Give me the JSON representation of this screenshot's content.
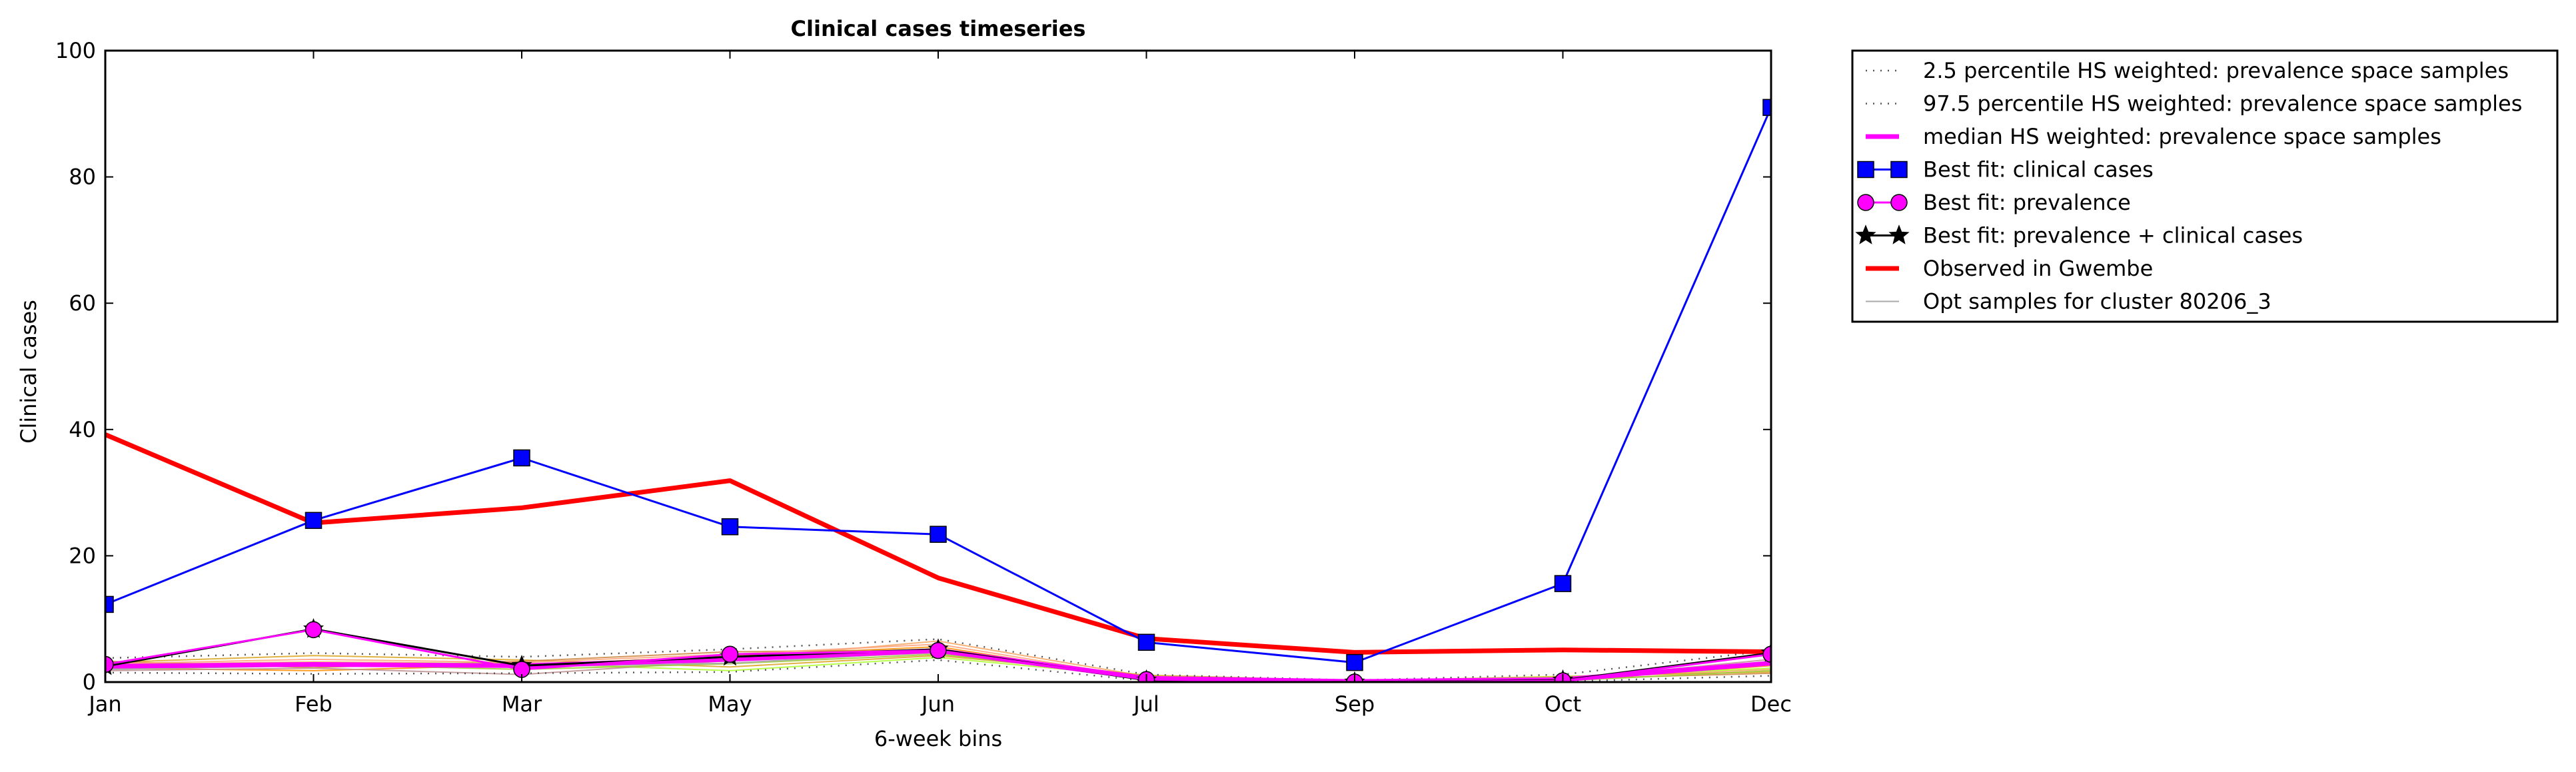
{
  "chart_data": {
    "type": "line",
    "title": "Clinical cases timeseries",
    "xlabel": "6-week bins",
    "ylabel": "Clinical cases",
    "categories": [
      "Jan",
      "Feb",
      "Mar",
      "May",
      "Jun",
      "Jul",
      "Sep",
      "Oct",
      "Dec"
    ],
    "ylim": [
      0,
      100
    ],
    "yticks": [
      0,
      20,
      40,
      60,
      80,
      100
    ],
    "grid": false,
    "legend_position": "outside-right",
    "series": [
      {
        "name": "2.5 percentile HS weighted: prevalence space samples",
        "color": "#555555",
        "style": "dotted",
        "values": [
          1.5,
          1.3,
          1.4,
          1.6,
          3.5,
          0.2,
          0.0,
          0.1,
          1.0
        ]
      },
      {
        "name": "97.5 percentile HS weighted: prevalence space samples",
        "color": "#555555",
        "style": "dotted",
        "values": [
          3.8,
          4.6,
          4.0,
          5.2,
          6.8,
          1.2,
          0.3,
          1.2,
          5.0
        ]
      },
      {
        "name": "median HS weighted: prevalence space samples",
        "color": "#ff00ff",
        "style": "solid-thick",
        "values": [
          2.5,
          2.8,
          2.6,
          3.6,
          5.0,
          0.6,
          0.1,
          0.4,
          3.0
        ]
      },
      {
        "name": "Best fit: clinical cases",
        "color": "#0000ff",
        "style": "solid",
        "marker": "square",
        "values": [
          12.3,
          25.6,
          35.5,
          24.6,
          23.4,
          6.3,
          3.1,
          15.6,
          91.0
        ]
      },
      {
        "name": "Best fit: prevalence",
        "color": "#ff00ff",
        "style": "solid",
        "marker": "circle",
        "values": [
          2.8,
          8.3,
          2.0,
          4.4,
          5.0,
          0.4,
          0.0,
          0.2,
          4.4
        ]
      },
      {
        "name": "Best fit: prevalence + clinical cases",
        "color": "#000000",
        "style": "solid",
        "marker": "star",
        "values": [
          2.5,
          8.4,
          2.6,
          4.0,
          5.2,
          0.3,
          0.0,
          0.3,
          4.6
        ]
      },
      {
        "name": "Observed in Gwembe",
        "color": "#ff0000",
        "style": "solid-thick",
        "values": [
          39.2,
          25.2,
          27.6,
          31.9,
          16.5,
          6.9,
          4.7,
          5.1,
          4.8
        ]
      },
      {
        "name": "Opt samples for cluster 80206_3",
        "color": "#aaaaaa",
        "style": "solid-thin",
        "values": [
          2.0,
          2.6,
          2.4,
          3.0,
          4.8,
          0.5,
          0.1,
          0.5,
          3.2
        ]
      }
    ],
    "sample_lines": [
      {
        "color": "#f4a460",
        "values": [
          2.8,
          3.2,
          2.9,
          3.6,
          6.5,
          0.9,
          0.1,
          0.6,
          2.0
        ]
      },
      {
        "color": "#daa520",
        "values": [
          3.1,
          4.2,
          3.5,
          2.4,
          4.2,
          1.1,
          0.2,
          0.9,
          1.6
        ]
      },
      {
        "color": "#ff8c00",
        "values": [
          2.2,
          1.8,
          2.7,
          4.1,
          5.6,
          0.4,
          0.1,
          0.3,
          2.6
        ]
      },
      {
        "color": "#cd853f",
        "values": [
          3.3,
          2.3,
          3.3,
          4.8,
          5.1,
          0.7,
          0.0,
          0.5,
          1.4
        ]
      },
      {
        "color": "#adff2f",
        "values": [
          2.5,
          3.0,
          3.0,
          1.8,
          3.9,
          0.8,
          0.2,
          0.8,
          2.2
        ]
      },
      {
        "color": "#bc8f8f",
        "values": [
          1.8,
          2.2,
          1.2,
          3.4,
          4.6,
          0.5,
          0.1,
          0.4,
          3.6
        ]
      },
      {
        "color": "#ffa07a",
        "values": [
          2.9,
          3.6,
          3.1,
          4.4,
          6.0,
          0.6,
          0.0,
          0.7,
          3.0
        ]
      },
      {
        "color": "#9acd32",
        "values": [
          2.1,
          2.8,
          2.0,
          2.9,
          4.4,
          0.9,
          0.3,
          0.2,
          1.8
        ]
      }
    ]
  }
}
